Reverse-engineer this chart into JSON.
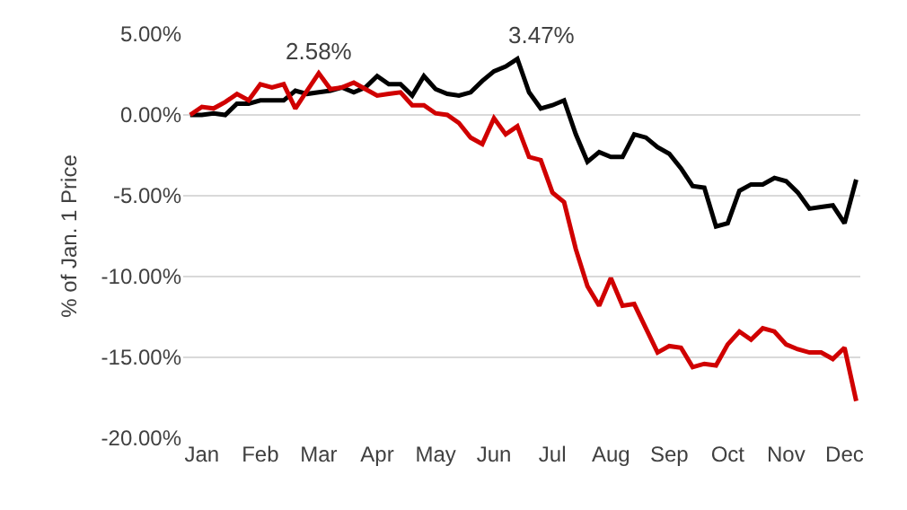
{
  "chart_data": {
    "type": "line",
    "ylabel": "% of Jan. 1 Price",
    "categories": [
      null,
      "Jan",
      null,
      null,
      null,
      null,
      "Feb",
      null,
      null,
      null,
      null,
      "Mar",
      null,
      null,
      null,
      null,
      "Apr",
      null,
      null,
      null,
      null,
      "May",
      null,
      null,
      null,
      null,
      "Jun",
      null,
      null,
      null,
      null,
      "Jul",
      null,
      null,
      null,
      null,
      "Aug",
      null,
      null,
      null,
      null,
      "Sep",
      null,
      null,
      null,
      null,
      "Oct",
      null,
      null,
      null,
      null,
      "Nov",
      null,
      null,
      null,
      null,
      "Dec",
      null
    ],
    "ylim": [
      -20,
      5
    ],
    "yticks": [
      {
        "value": 5,
        "label": "5.00%"
      },
      {
        "value": 0,
        "label": "0.00%"
      },
      {
        "value": -5,
        "label": "-5.00%"
      },
      {
        "value": -10,
        "label": "-10.00%"
      },
      {
        "value": -15,
        "label": "-15.00%"
      },
      {
        "value": -20,
        "label": "-20.00%"
      }
    ],
    "grid": "y",
    "marker": "none",
    "line_style": "solid",
    "series": [
      {
        "color": "#000000",
        "values": [
          0,
          0,
          0.1,
          0,
          0.7,
          0.7,
          0.9,
          0.9,
          0.9,
          1.5,
          1.3,
          1.4,
          1.5,
          1.7,
          1.4,
          1.7,
          2.4,
          1.9,
          1.9,
          1.2,
          2.4,
          1.6,
          1.3,
          1.2,
          1.4,
          2.1,
          2.7,
          3.0,
          3.47,
          1.4,
          0.4,
          0.6,
          0.9,
          -1.2,
          -2.9,
          -2.3,
          -2.6,
          -2.6,
          -1.2,
          -1.4,
          -2.0,
          -2.4,
          -3.3,
          -4.4,
          -4.5,
          -6.9,
          -6.7,
          -4.7,
          -4.3,
          -4.3,
          -3.9,
          -4.1,
          -4.8,
          -5.8,
          -5.7,
          -5.6,
          -6.7,
          -4.0
        ]
      },
      {
        "color": "#d00000",
        "values": [
          0,
          0.5,
          0.4,
          0.8,
          1.3,
          0.9,
          1.9,
          1.7,
          1.9,
          0.4,
          1.5,
          2.58,
          1.6,
          1.7,
          2.0,
          1.6,
          1.2,
          1.3,
          1.4,
          0.6,
          0.6,
          0.1,
          0.0,
          -0.5,
          -1.4,
          -1.8,
          -0.2,
          -1.2,
          -0.7,
          -2.6,
          -2.8,
          -4.8,
          -5.4,
          -8.3,
          -10.6,
          -11.8,
          -10.1,
          -11.8,
          -11.7,
          -13.2,
          -14.7,
          -14.3,
          -14.4,
          -15.6,
          -15.4,
          -15.5,
          -14.2,
          -13.4,
          -13.9,
          -13.2,
          -13.4,
          -14.2,
          -14.5,
          -14.7,
          -14.7,
          -15.1,
          -14.4,
          -17.7
        ]
      }
    ],
    "annotations": [
      "2.58%",
      "3.47%"
    ]
  }
}
